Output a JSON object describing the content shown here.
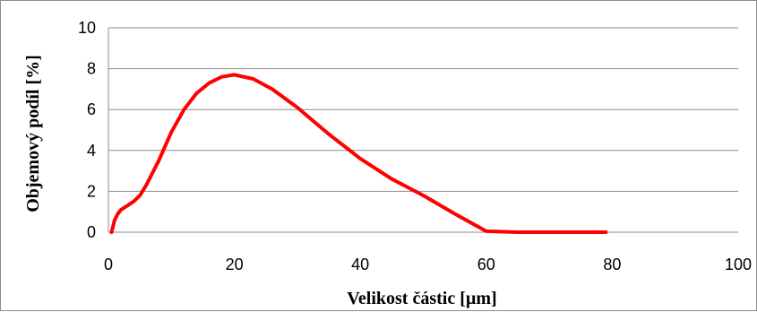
{
  "chart_data": {
    "type": "line",
    "title": "",
    "xlabel": "Velikost částic [µm]",
    "ylabel": "Objemový  podíl [%]",
    "xlim": [
      0,
      100
    ],
    "ylim": [
      0,
      10
    ],
    "xticks": [
      0,
      20,
      40,
      60,
      80,
      100
    ],
    "yticks": [
      0,
      2,
      4,
      6,
      8,
      10
    ],
    "grid": "horizontal",
    "legend": "none",
    "line_color": "#ff0000",
    "series": [
      {
        "x": [
          0.5,
          1,
          1.5,
          2,
          3,
          4,
          5,
          6,
          8,
          10,
          12,
          14,
          16,
          18,
          20,
          23,
          26,
          30,
          35,
          40,
          45,
          50,
          55,
          60,
          65,
          70,
          75,
          79
        ],
        "values": [
          0.0,
          0.6,
          0.9,
          1.1,
          1.3,
          1.5,
          1.8,
          2.3,
          3.5,
          4.9,
          6.0,
          6.8,
          7.3,
          7.6,
          7.7,
          7.5,
          7.0,
          6.1,
          4.8,
          3.6,
          2.6,
          1.8,
          0.9,
          0.05,
          0.0,
          0.0,
          0.0,
          0.0
        ]
      }
    ]
  }
}
